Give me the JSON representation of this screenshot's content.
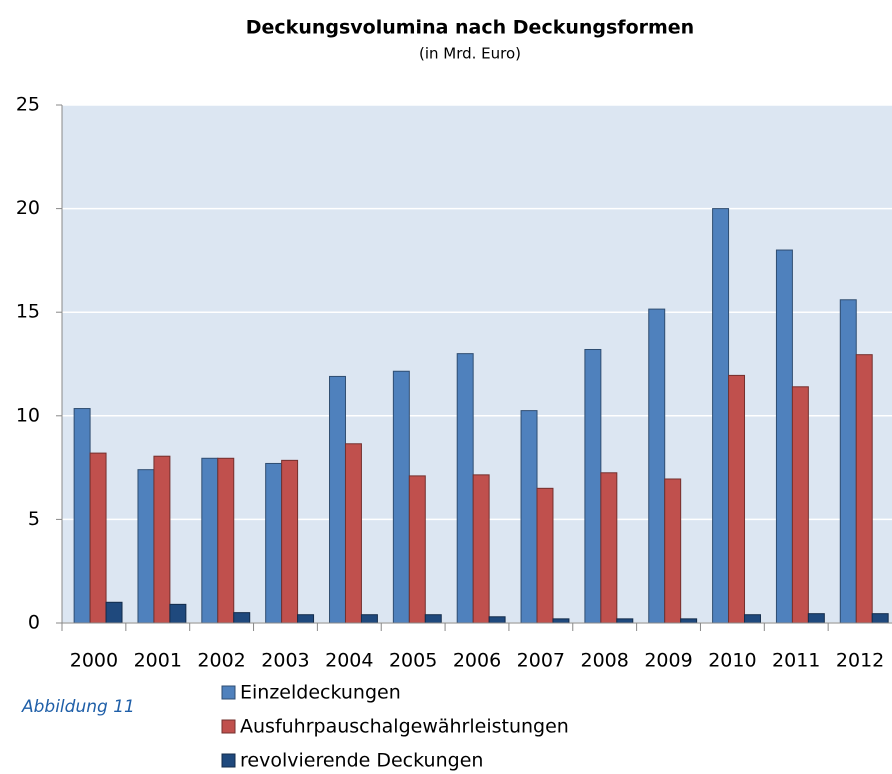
{
  "chart_data": {
    "type": "bar",
    "title": "Deckungsvolumina nach Deckungsformen",
    "subtitle": "(in Mrd. Euro)",
    "annotation": "Abbildung 11",
    "categories": [
      "2000",
      "2001",
      "2002",
      "2003",
      "2004",
      "2005",
      "2006",
      "2007",
      "2008",
      "2009",
      "2010",
      "2011",
      "2012"
    ],
    "series": [
      {
        "name": "Einzeldeckungen",
        "color": "#4f81bd",
        "values": [
          10.35,
          7.4,
          7.95,
          7.7,
          11.9,
          12.15,
          13.0,
          10.25,
          13.2,
          15.15,
          20.0,
          18.0,
          15.6
        ]
      },
      {
        "name": "Ausfuhrpauschalgewährleistungen",
        "color": "#c0504d",
        "values": [
          8.2,
          8.05,
          7.95,
          7.85,
          8.65,
          7.1,
          7.15,
          6.5,
          7.25,
          6.95,
          11.95,
          11.4,
          12.95
        ]
      },
      {
        "name": "revolvierende Deckungen",
        "color": "#1f497d",
        "values": [
          1.0,
          0.9,
          0.5,
          0.4,
          0.4,
          0.4,
          0.3,
          0.2,
          0.2,
          0.2,
          0.4,
          0.45,
          0.45
        ]
      }
    ],
    "ylim": [
      0,
      25
    ],
    "yticks": [
      0,
      5,
      10,
      15,
      20,
      25
    ],
    "grid": true
  }
}
